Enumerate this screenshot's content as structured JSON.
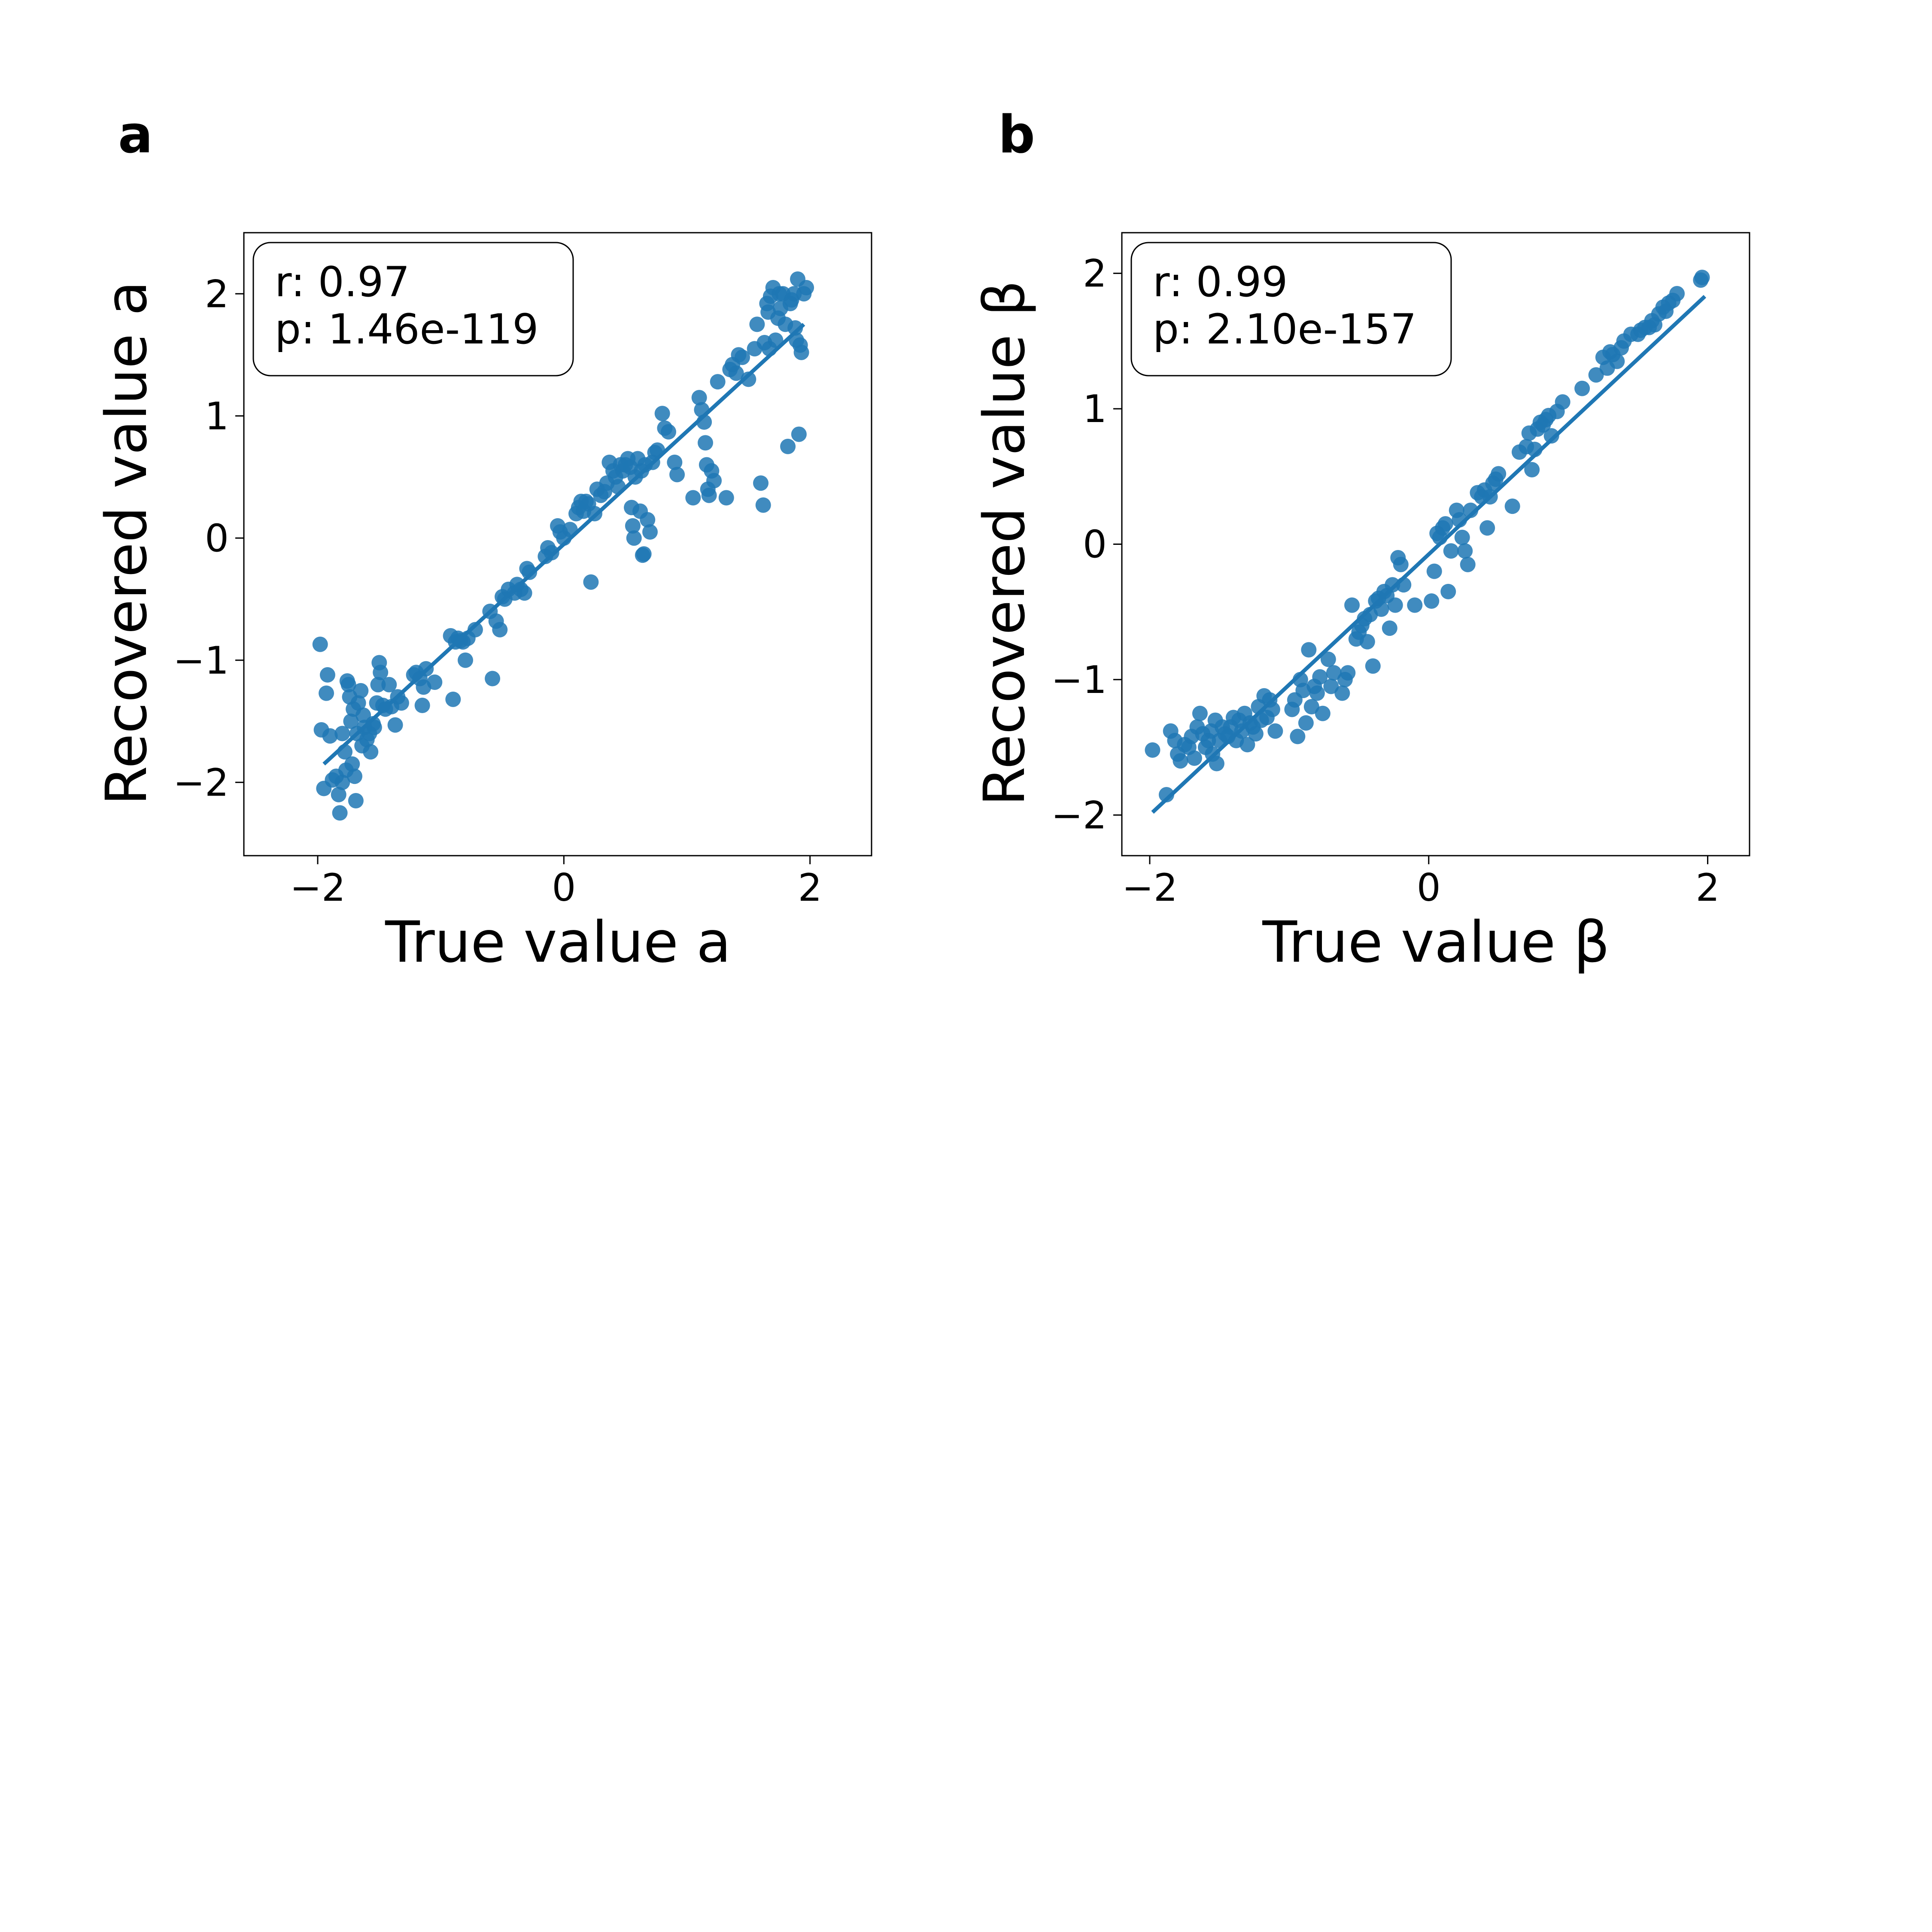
{
  "figure": {
    "panels": [
      {
        "letter": "a",
        "stats_r": "r: 0.97",
        "stats_p": "p: 1.46e-119"
      },
      {
        "letter": "b",
        "stats_r": "r: 0.99",
        "stats_p": "p: 2.10e-157"
      }
    ]
  },
  "colors": {
    "series": "#1f77b4",
    "axes": "#000000",
    "background": "#ffffff"
  },
  "chart_data": [
    {
      "type": "scatter",
      "title": "",
      "xlabel": "True value a",
      "ylabel": "Recovered value a",
      "xlim": [
        -2.6,
        2.5
      ],
      "ylim": [
        -2.6,
        2.5
      ],
      "xticks": [
        -2,
        0,
        2
      ],
      "yticks": [
        -2,
        -1,
        0,
        1,
        2
      ],
      "xtick_labels": [
        "−2",
        "0",
        "2"
      ],
      "ytick_labels": [
        "−2",
        "−1",
        "0",
        "1",
        "2"
      ],
      "grid": false,
      "annotation": [
        "r: 0.97",
        "p: 1.46e-119"
      ],
      "regression": {
        "x": [
          -1.95,
          1.95
        ],
        "y": [
          -1.85,
          1.75
        ]
      },
      "points": [
        [
          -1.98,
          -0.87
        ],
        [
          -1.97,
          -1.57
        ],
        [
          -1.95,
          -2.05
        ],
        [
          -1.93,
          -1.27
        ],
        [
          -1.92,
          -1.12
        ],
        [
          -1.9,
          -1.62
        ],
        [
          -1.88,
          -1.98
        ],
        [
          -1.85,
          -1.95
        ],
        [
          -1.83,
          -2.1
        ],
        [
          -1.82,
          -2.25
        ],
        [
          -1.8,
          -1.6
        ],
        [
          -1.8,
          -2.0
        ],
        [
          -1.78,
          -1.75
        ],
        [
          -1.77,
          -1.9
        ],
        [
          -1.76,
          -1.17
        ],
        [
          -1.75,
          -1.2
        ],
        [
          -1.74,
          -1.3
        ],
        [
          -1.73,
          -1.5
        ],
        [
          -1.72,
          -1.85
        ],
        [
          -1.71,
          -1.4
        ],
        [
          -1.7,
          -1.95
        ],
        [
          -1.69,
          -2.15
        ],
        [
          -1.68,
          -1.6
        ],
        [
          -1.67,
          -1.35
        ],
        [
          -1.65,
          -1.25
        ],
        [
          -1.64,
          -1.7
        ],
        [
          -1.63,
          -1.45
        ],
        [
          -1.62,
          -1.55
        ],
        [
          -1.6,
          -1.65
        ],
        [
          -1.58,
          -1.6
        ],
        [
          -1.57,
          -1.75
        ],
        [
          -1.55,
          -1.52
        ],
        [
          -1.54,
          -1.55
        ],
        [
          -1.52,
          -1.35
        ],
        [
          -1.51,
          -1.2
        ],
        [
          -1.5,
          -1.02
        ],
        [
          -1.49,
          -1.1
        ],
        [
          -1.47,
          -1.37
        ],
        [
          -1.45,
          -1.4
        ],
        [
          -1.42,
          -1.2
        ],
        [
          -1.4,
          -1.38
        ],
        [
          -1.37,
          -1.53
        ],
        [
          -1.35,
          -1.3
        ],
        [
          -1.32,
          -1.35
        ],
        [
          -1.22,
          -1.12
        ],
        [
          -1.2,
          -1.1
        ],
        [
          -1.17,
          -1.15
        ],
        [
          -1.15,
          -1.37
        ],
        [
          -1.14,
          -1.22
        ],
        [
          -1.12,
          -1.07
        ],
        [
          -1.05,
          -1.18
        ],
        [
          -0.92,
          -0.8
        ],
        [
          -0.9,
          -1.32
        ],
        [
          -0.88,
          -0.85
        ],
        [
          -0.86,
          -0.82
        ],
        [
          -0.84,
          -0.84
        ],
        [
          -0.82,
          -0.85
        ],
        [
          -0.8,
          -1.0
        ],
        [
          -0.78,
          -0.82
        ],
        [
          -0.72,
          -0.75
        ],
        [
          -0.6,
          -0.6
        ],
        [
          -0.58,
          -1.15
        ],
        [
          -0.55,
          -0.68
        ],
        [
          -0.52,
          -0.75
        ],
        [
          -0.5,
          -0.48
        ],
        [
          -0.48,
          -0.5
        ],
        [
          -0.45,
          -0.42
        ],
        [
          -0.4,
          -0.45
        ],
        [
          -0.38,
          -0.38
        ],
        [
          -0.35,
          -0.42
        ],
        [
          -0.32,
          -0.45
        ],
        [
          -0.3,
          -0.25
        ],
        [
          -0.28,
          -0.28
        ],
        [
          -0.15,
          -0.15
        ],
        [
          -0.13,
          -0.08
        ],
        [
          -0.1,
          -0.12
        ],
        [
          -0.05,
          0.1
        ],
        [
          -0.03,
          0.05
        ],
        [
          0.0,
          0.0
        ],
        [
          0.05,
          0.07
        ],
        [
          0.1,
          0.2
        ],
        [
          0.12,
          0.25
        ],
        [
          0.14,
          0.3
        ],
        [
          0.16,
          0.22
        ],
        [
          0.18,
          0.3
        ],
        [
          0.2,
          0.28
        ],
        [
          0.22,
          -0.36
        ],
        [
          0.25,
          0.2
        ],
        [
          0.27,
          0.4
        ],
        [
          0.3,
          0.35
        ],
        [
          0.33,
          0.38
        ],
        [
          0.35,
          0.45
        ],
        [
          0.37,
          0.62
        ],
        [
          0.4,
          0.55
        ],
        [
          0.42,
          0.5
        ],
        [
          0.44,
          0.42
        ],
        [
          0.46,
          0.6
        ],
        [
          0.48,
          0.55
        ],
        [
          0.5,
          0.6
        ],
        [
          0.52,
          0.65
        ],
        [
          0.54,
          0.58
        ],
        [
          0.55,
          0.25
        ],
        [
          0.56,
          0.1
        ],
        [
          0.57,
          0.0
        ],
        [
          0.58,
          0.5
        ],
        [
          0.6,
          0.65
        ],
        [
          0.62,
          0.22
        ],
        [
          0.63,
          0.55
        ],
        [
          0.64,
          -0.14
        ],
        [
          0.65,
          -0.13
        ],
        [
          0.66,
          0.6
        ],
        [
          0.68,
          0.15
        ],
        [
          0.7,
          0.05
        ],
        [
          0.72,
          0.62
        ],
        [
          0.74,
          0.7
        ],
        [
          0.76,
          0.72
        ],
        [
          0.8,
          1.02
        ],
        [
          0.82,
          0.9
        ],
        [
          0.85,
          0.87
        ],
        [
          0.9,
          0.62
        ],
        [
          0.92,
          0.52
        ],
        [
          1.05,
          0.33
        ],
        [
          1.1,
          1.15
        ],
        [
          1.12,
          1.05
        ],
        [
          1.14,
          0.95
        ],
        [
          1.15,
          0.78
        ],
        [
          1.16,
          0.6
        ],
        [
          1.17,
          0.4
        ],
        [
          1.18,
          0.35
        ],
        [
          1.2,
          0.55
        ],
        [
          1.22,
          0.47
        ],
        [
          1.25,
          1.28
        ],
        [
          1.32,
          0.33
        ],
        [
          1.35,
          1.38
        ],
        [
          1.37,
          1.42
        ],
        [
          1.4,
          1.35
        ],
        [
          1.42,
          1.5
        ],
        [
          1.45,
          1.48
        ],
        [
          1.5,
          1.3
        ],
        [
          1.55,
          1.55
        ],
        [
          1.57,
          1.75
        ],
        [
          1.6,
          0.45
        ],
        [
          1.62,
          0.27
        ],
        [
          1.63,
          1.6
        ],
        [
          1.65,
          1.92
        ],
        [
          1.66,
          1.85
        ],
        [
          1.67,
          1.55
        ],
        [
          1.68,
          1.98
        ],
        [
          1.7,
          2.05
        ],
        [
          1.72,
          1.62
        ],
        [
          1.74,
          1.8
        ],
        [
          1.75,
          2.0
        ],
        [
          1.76,
          1.88
        ],
        [
          1.78,
          2.0
        ],
        [
          1.8,
          1.75
        ],
        [
          1.82,
          0.75
        ],
        [
          1.84,
          1.92
        ],
        [
          1.85,
          1.95
        ],
        [
          1.87,
          2.0
        ],
        [
          1.88,
          1.72
        ],
        [
          1.89,
          1.62
        ],
        [
          1.9,
          2.12
        ],
        [
          1.91,
          0.85
        ],
        [
          1.92,
          1.58
        ],
        [
          1.93,
          1.52
        ],
        [
          1.95,
          2.0
        ],
        [
          1.97,
          2.05
        ]
      ]
    },
    {
      "type": "scatter",
      "title": "",
      "xlabel": "True value β",
      "ylabel": "Recovered value β",
      "xlim": [
        -2.2,
        2.3
      ],
      "ylim": [
        -2.3,
        2.3
      ],
      "xticks": [
        -2,
        0,
        2
      ],
      "yticks": [
        -2,
        -1,
        0,
        1,
        2
      ],
      "xtick_labels": [
        "−2",
        "0",
        "2"
      ],
      "ytick_labels": [
        "−2",
        "−1",
        "0",
        "1",
        "2"
      ],
      "grid": false,
      "annotation": [
        "r: 0.99",
        "p: 2.10e-157"
      ],
      "regression": {
        "x": [
          -1.98,
          1.98
        ],
        "y": [
          -1.98,
          1.83
        ]
      },
      "points": [
        [
          -1.98,
          -1.52
        ],
        [
          -1.88,
          -1.85
        ],
        [
          -1.85,
          -1.38
        ],
        [
          -1.82,
          -1.45
        ],
        [
          -1.8,
          -1.55
        ],
        [
          -1.78,
          -1.6
        ],
        [
          -1.75,
          -1.48
        ],
        [
          -1.72,
          -1.5
        ],
        [
          -1.7,
          -1.42
        ],
        [
          -1.68,
          -1.58
        ],
        [
          -1.66,
          -1.35
        ],
        [
          -1.64,
          -1.25
        ],
        [
          -1.62,
          -1.4
        ],
        [
          -1.6,
          -1.5
        ],
        [
          -1.58,
          -1.45
        ],
        [
          -1.56,
          -1.38
        ],
        [
          -1.55,
          -1.55
        ],
        [
          -1.53,
          -1.3
        ],
        [
          -1.52,
          -1.62
        ],
        [
          -1.5,
          -1.45
        ],
        [
          -1.48,
          -1.35
        ],
        [
          -1.46,
          -1.4
        ],
        [
          -1.44,
          -1.42
        ],
        [
          -1.42,
          -1.35
        ],
        [
          -1.4,
          -1.28
        ],
        [
          -1.38,
          -1.45
        ],
        [
          -1.36,
          -1.3
        ],
        [
          -1.34,
          -1.38
        ],
        [
          -1.32,
          -1.25
        ],
        [
          -1.3,
          -1.48
        ],
        [
          -1.28,
          -1.32
        ],
        [
          -1.26,
          -1.35
        ],
        [
          -1.24,
          -1.4
        ],
        [
          -1.22,
          -1.2
        ],
        [
          -1.2,
          -1.3
        ],
        [
          -1.18,
          -1.12
        ],
        [
          -1.16,
          -1.28
        ],
        [
          -1.14,
          -1.15
        ],
        [
          -1.12,
          -1.22
        ],
        [
          -1.1,
          -1.38
        ],
        [
          -0.98,
          -1.22
        ],
        [
          -0.96,
          -1.15
        ],
        [
          -0.94,
          -1.42
        ],
        [
          -0.92,
          -1.0
        ],
        [
          -0.9,
          -1.08
        ],
        [
          -0.88,
          -1.32
        ],
        [
          -0.86,
          -0.78
        ],
        [
          -0.84,
          -1.2
        ],
        [
          -0.82,
          -1.05
        ],
        [
          -0.8,
          -1.1
        ],
        [
          -0.78,
          -0.98
        ],
        [
          -0.76,
          -1.25
        ],
        [
          -0.72,
          -0.85
        ],
        [
          -0.7,
          -1.05
        ],
        [
          -0.68,
          -0.95
        ],
        [
          -0.62,
          -1.1
        ],
        [
          -0.6,
          -1.0
        ],
        [
          -0.58,
          -0.95
        ],
        [
          -0.55,
          -0.45
        ],
        [
          -0.52,
          -0.7
        ],
        [
          -0.5,
          -0.65
        ],
        [
          -0.48,
          -0.6
        ],
        [
          -0.46,
          -0.55
        ],
        [
          -0.44,
          -0.72
        ],
        [
          -0.42,
          -0.52
        ],
        [
          -0.4,
          -0.9
        ],
        [
          -0.38,
          -0.42
        ],
        [
          -0.36,
          -0.4
        ],
        [
          -0.34,
          -0.48
        ],
        [
          -0.32,
          -0.35
        ],
        [
          -0.3,
          -0.38
        ],
        [
          -0.28,
          -0.62
        ],
        [
          -0.26,
          -0.3
        ],
        [
          -0.24,
          -0.45
        ],
        [
          -0.22,
          -0.1
        ],
        [
          -0.2,
          -0.15
        ],
        [
          -0.18,
          -0.3
        ],
        [
          -0.1,
          -0.45
        ],
        [
          0.02,
          -0.42
        ],
        [
          0.04,
          -0.2
        ],
        [
          0.06,
          0.08
        ],
        [
          0.08,
          0.05
        ],
        [
          0.1,
          0.12
        ],
        [
          0.12,
          0.15
        ],
        [
          0.14,
          -0.35
        ],
        [
          0.16,
          -0.05
        ],
        [
          0.2,
          0.25
        ],
        [
          0.22,
          0.18
        ],
        [
          0.24,
          0.05
        ],
        [
          0.26,
          -0.05
        ],
        [
          0.28,
          -0.15
        ],
        [
          0.3,
          0.25
        ],
        [
          0.35,
          0.38
        ],
        [
          0.38,
          0.35
        ],
        [
          0.4,
          0.4
        ],
        [
          0.42,
          0.12
        ],
        [
          0.44,
          0.35
        ],
        [
          0.46,
          0.45
        ],
        [
          0.48,
          0.48
        ],
        [
          0.5,
          0.52
        ],
        [
          0.6,
          0.28
        ],
        [
          0.65,
          0.68
        ],
        [
          0.7,
          0.72
        ],
        [
          0.72,
          0.82
        ],
        [
          0.74,
          0.55
        ],
        [
          0.76,
          0.7
        ],
        [
          0.78,
          0.85
        ],
        [
          0.8,
          0.9
        ],
        [
          0.82,
          0.88
        ],
        [
          0.84,
          0.92
        ],
        [
          0.86,
          0.95
        ],
        [
          0.88,
          0.8
        ],
        [
          0.92,
          0.98
        ],
        [
          0.96,
          1.05
        ],
        [
          1.1,
          1.15
        ],
        [
          1.2,
          1.25
        ],
        [
          1.25,
          1.38
        ],
        [
          1.28,
          1.3
        ],
        [
          1.3,
          1.42
        ],
        [
          1.32,
          1.4
        ],
        [
          1.35,
          1.35
        ],
        [
          1.38,
          1.45
        ],
        [
          1.4,
          1.5
        ],
        [
          1.45,
          1.55
        ],
        [
          1.5,
          1.55
        ],
        [
          1.52,
          1.58
        ],
        [
          1.55,
          1.6
        ],
        [
          1.58,
          1.6
        ],
        [
          1.6,
          1.65
        ],
        [
          1.62,
          1.62
        ],
        [
          1.65,
          1.7
        ],
        [
          1.68,
          1.75
        ],
        [
          1.7,
          1.72
        ],
        [
          1.72,
          1.78
        ],
        [
          1.75,
          1.8
        ],
        [
          1.78,
          1.85
        ],
        [
          1.95,
          1.95
        ],
        [
          1.96,
          1.97
        ]
      ]
    }
  ]
}
